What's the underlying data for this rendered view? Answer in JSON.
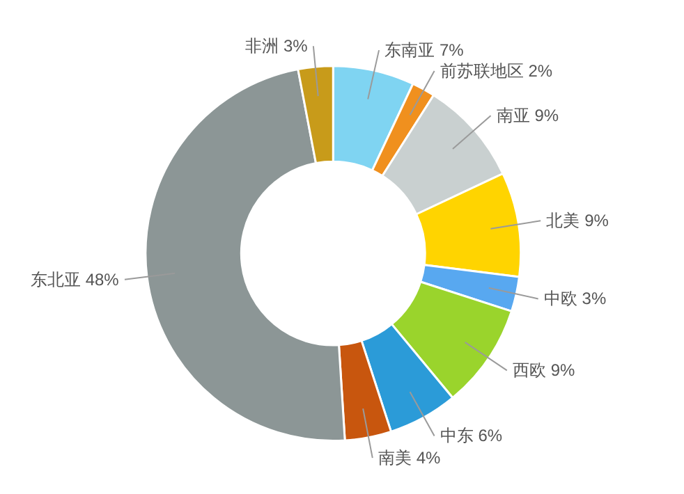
{
  "chart_data": {
    "type": "donut",
    "categories": [
      "东南亚",
      "前苏联地区",
      "南亚",
      "北美",
      "中欧",
      "西欧",
      "中东",
      "南美",
      "东北亚",
      "非洲"
    ],
    "values": [
      7,
      2,
      9,
      9,
      3,
      9,
      6,
      4,
      48,
      3
    ],
    "value_labels": [
      "7%",
      "2%",
      "9%",
      "9%",
      "3%",
      "9%",
      "6%",
      "4%",
      "48%",
      "3%"
    ],
    "colors": [
      "#7fd4f2",
      "#f0901e",
      "#c9d0d0",
      "#ffd400",
      "#58a8f0",
      "#9ad42c",
      "#2b9bd8",
      "#c8560e",
      "#8c9696",
      "#c89b1a"
    ]
  }
}
